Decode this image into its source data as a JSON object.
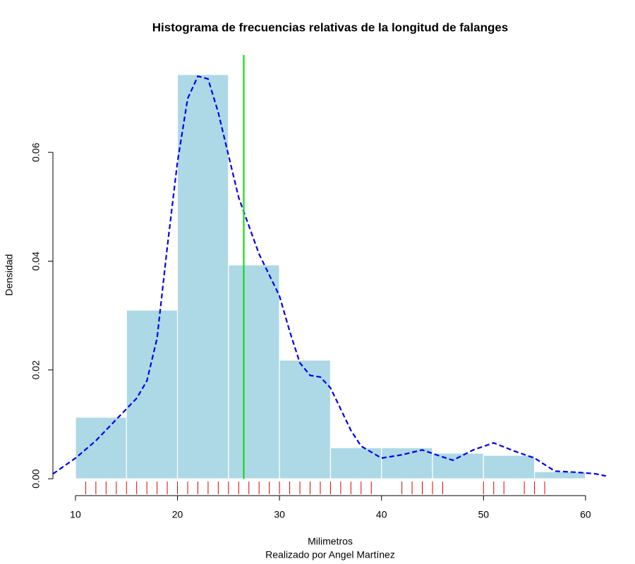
{
  "chart_data": {
    "type": "histogram",
    "title": "Histograma de frecuencias relativas de la longitud de falanges",
    "subtitle": "Realizado por Angel Martínez",
    "x_label": "Milimetros",
    "y_label": "Densidad",
    "bins": [
      10,
      15,
      20,
      25,
      30,
      35,
      40,
      45,
      50,
      55,
      60
    ],
    "values": [
      0.0113,
      0.031,
      0.0743,
      0.0393,
      0.0218,
      0.0057,
      0.0057,
      0.0047,
      0.0043,
      0.0013
    ],
    "color": "#add8e6",
    "density": {
      "color": "#0000ee",
      "x": [
        7.8,
        10,
        12,
        14,
        16,
        17,
        18,
        19,
        20,
        21,
        22,
        23,
        24,
        25,
        26,
        27,
        28,
        30,
        31,
        32,
        33,
        34,
        35,
        36,
        37,
        38,
        40,
        42,
        44,
        46,
        47,
        49,
        51,
        53,
        55,
        57,
        59,
        61,
        62
      ],
      "values": [
        0.0009,
        0.0038,
        0.007,
        0.0109,
        0.0148,
        0.018,
        0.0258,
        0.0426,
        0.0582,
        0.0699,
        0.074,
        0.0735,
        0.0673,
        0.0595,
        0.0517,
        0.0465,
        0.0413,
        0.0336,
        0.0271,
        0.0213,
        0.019,
        0.0187,
        0.0167,
        0.0128,
        0.0089,
        0.006,
        0.0038,
        0.0044,
        0.0053,
        0.004,
        0.0034,
        0.0053,
        0.0066,
        0.0051,
        0.0038,
        0.0014,
        0.0012,
        0.0009,
        0.0005
      ]
    },
    "vline": {
      "value": 26.5,
      "color": "#00dd00"
    },
    "rug": {
      "color": "#dd0000",
      "values": [
        11,
        12,
        13,
        14,
        15,
        16,
        17,
        18,
        19,
        20,
        21,
        22,
        23,
        24,
        25,
        26,
        27,
        28,
        29,
        30,
        31,
        32,
        33,
        34,
        35,
        36,
        37,
        38,
        39,
        42,
        43,
        44,
        45,
        46,
        50,
        51,
        52,
        54,
        55,
        56
      ]
    },
    "xlim": [
      7.79,
      62.43
    ],
    "ylim": [
      -0.0031,
      0.0779
    ],
    "xticks": [
      10,
      20,
      30,
      40,
      50,
      60
    ],
    "yticks": [
      {
        "value": 0,
        "label": "0.00"
      },
      {
        "value": 0.02,
        "label": "0.02"
      },
      {
        "value": 0.04,
        "label": "0.04"
      },
      {
        "value": 0.06,
        "label": "0.06"
      }
    ]
  }
}
